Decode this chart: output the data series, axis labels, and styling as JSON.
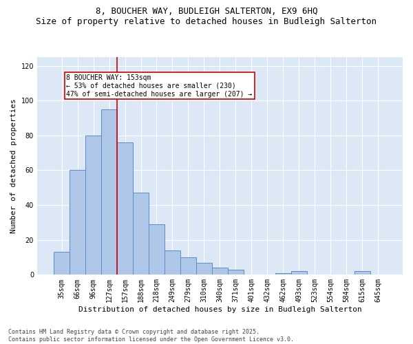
{
  "title": "8, BOUCHER WAY, BUDLEIGH SALTERTON, EX9 6HQ",
  "subtitle": "Size of property relative to detached houses in Budleigh Salterton",
  "xlabel": "Distribution of detached houses by size in Budleigh Salterton",
  "ylabel": "Number of detached properties",
  "bar_labels": [
    "35sqm",
    "66sqm",
    "96sqm",
    "127sqm",
    "157sqm",
    "188sqm",
    "218sqm",
    "249sqm",
    "279sqm",
    "310sqm",
    "340sqm",
    "371sqm",
    "401sqm",
    "432sqm",
    "462sqm",
    "493sqm",
    "523sqm",
    "554sqm",
    "584sqm",
    "615sqm",
    "645sqm"
  ],
  "bar_values": [
    13,
    60,
    80,
    95,
    76,
    47,
    29,
    14,
    10,
    7,
    4,
    3,
    0,
    0,
    1,
    2,
    0,
    0,
    0,
    2,
    0
  ],
  "bar_color": "#aec6e8",
  "bar_edge_color": "#5b8cc8",
  "background_color": "#dce8f5",
  "vline_color": "#cc0000",
  "annotation_text": "8 BOUCHER WAY: 153sqm\n← 53% of detached houses are smaller (230)\n47% of semi-detached houses are larger (207) →",
  "footer_line1": "Contains HM Land Registry data © Crown copyright and database right 2025.",
  "footer_line2": "Contains public sector information licensed under the Open Government Licence v3.0.",
  "ylim": [
    0,
    125
  ],
  "yticks": [
    0,
    20,
    40,
    60,
    80,
    100,
    120
  ],
  "title_fontsize": 9,
  "subtitle_fontsize": 8,
  "axis_label_fontsize": 8,
  "tick_fontsize": 7,
  "annotation_fontsize": 7,
  "footer_fontsize": 6
}
